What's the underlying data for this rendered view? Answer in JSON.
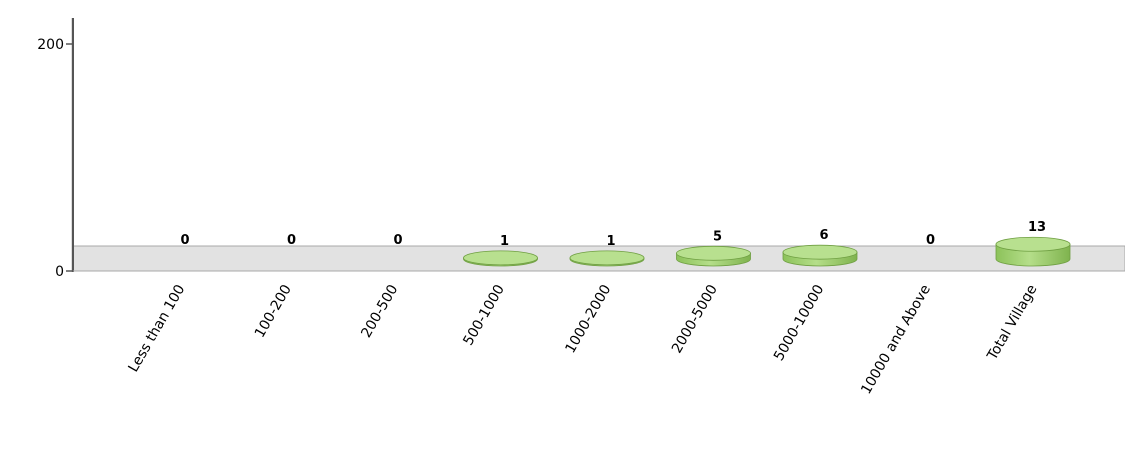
{
  "chart_data": {
    "type": "bar",
    "title": "",
    "xlabel": "",
    "ylabel": "",
    "categories": [
      "Less than 100",
      "100-200",
      "200-500",
      "500-1000",
      "1000-2000",
      "2000-5000",
      "5000-10000",
      "10000 and Above",
      "Total Village"
    ],
    "values": [
      0,
      0,
      0,
      1,
      1,
      5,
      6,
      0,
      13
    ],
    "value_labels": [
      "0",
      "0",
      "0",
      "1",
      "1",
      "5",
      "6",
      "0",
      "13"
    ],
    "ylim": [
      0,
      200
    ],
    "y_ticks": [
      {
        "value": 0,
        "label": "0"
      },
      {
        "value": 200,
        "label": "200"
      }
    ],
    "grid": false,
    "legend": "none",
    "colors": {
      "bar": "#9acd6a",
      "bar_top": "#b8e08f",
      "bar_edge": "#6f9f42",
      "floor": "#e2e2e2",
      "floor_edge": "#a8a8a8",
      "axis": "#555555"
    }
  }
}
